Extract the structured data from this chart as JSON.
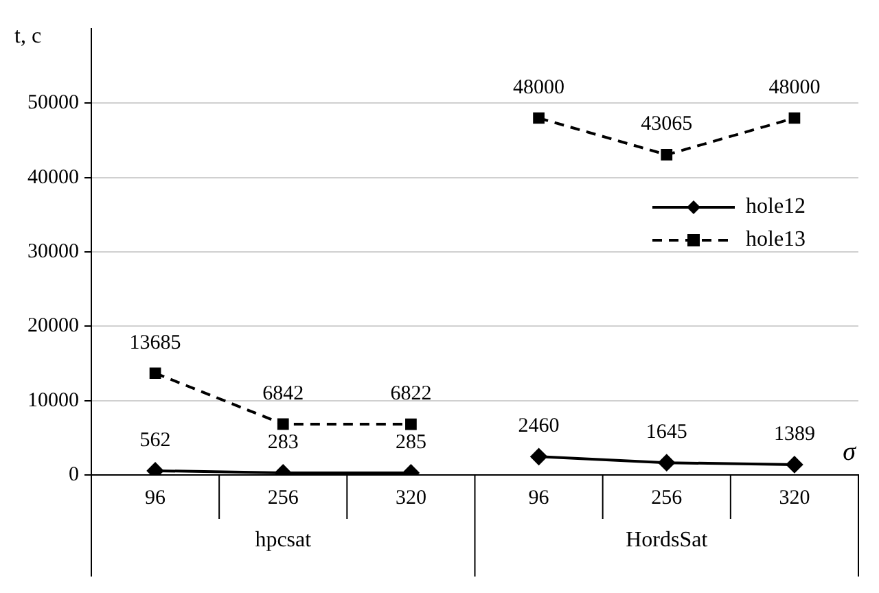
{
  "chart_data": {
    "type": "line",
    "ylabel": "t, c",
    "xlabel": "σ",
    "categories": [
      "96",
      "256",
      "320",
      "96",
      "256",
      "320"
    ],
    "annotations": [
      "hpcsat",
      "HordsSat"
    ],
    "series": [
      {
        "name": "hole12",
        "color": "#000000",
        "marker": "diamond",
        "line_style": "solid",
        "values": [
          562,
          283,
          285,
          2460,
          1645,
          1389
        ]
      },
      {
        "name": "hole13",
        "color": "#000000",
        "marker": "square",
        "line_style": "dashed",
        "values": [
          13685,
          6842,
          6822,
          48000,
          43065,
          48000
        ]
      }
    ],
    "ylim": [
      0,
      60000
    ],
    "yticks": [
      0,
      10000,
      20000,
      30000,
      40000,
      50000
    ],
    "grid": "y",
    "legend": "right",
    "data_labels": true
  }
}
